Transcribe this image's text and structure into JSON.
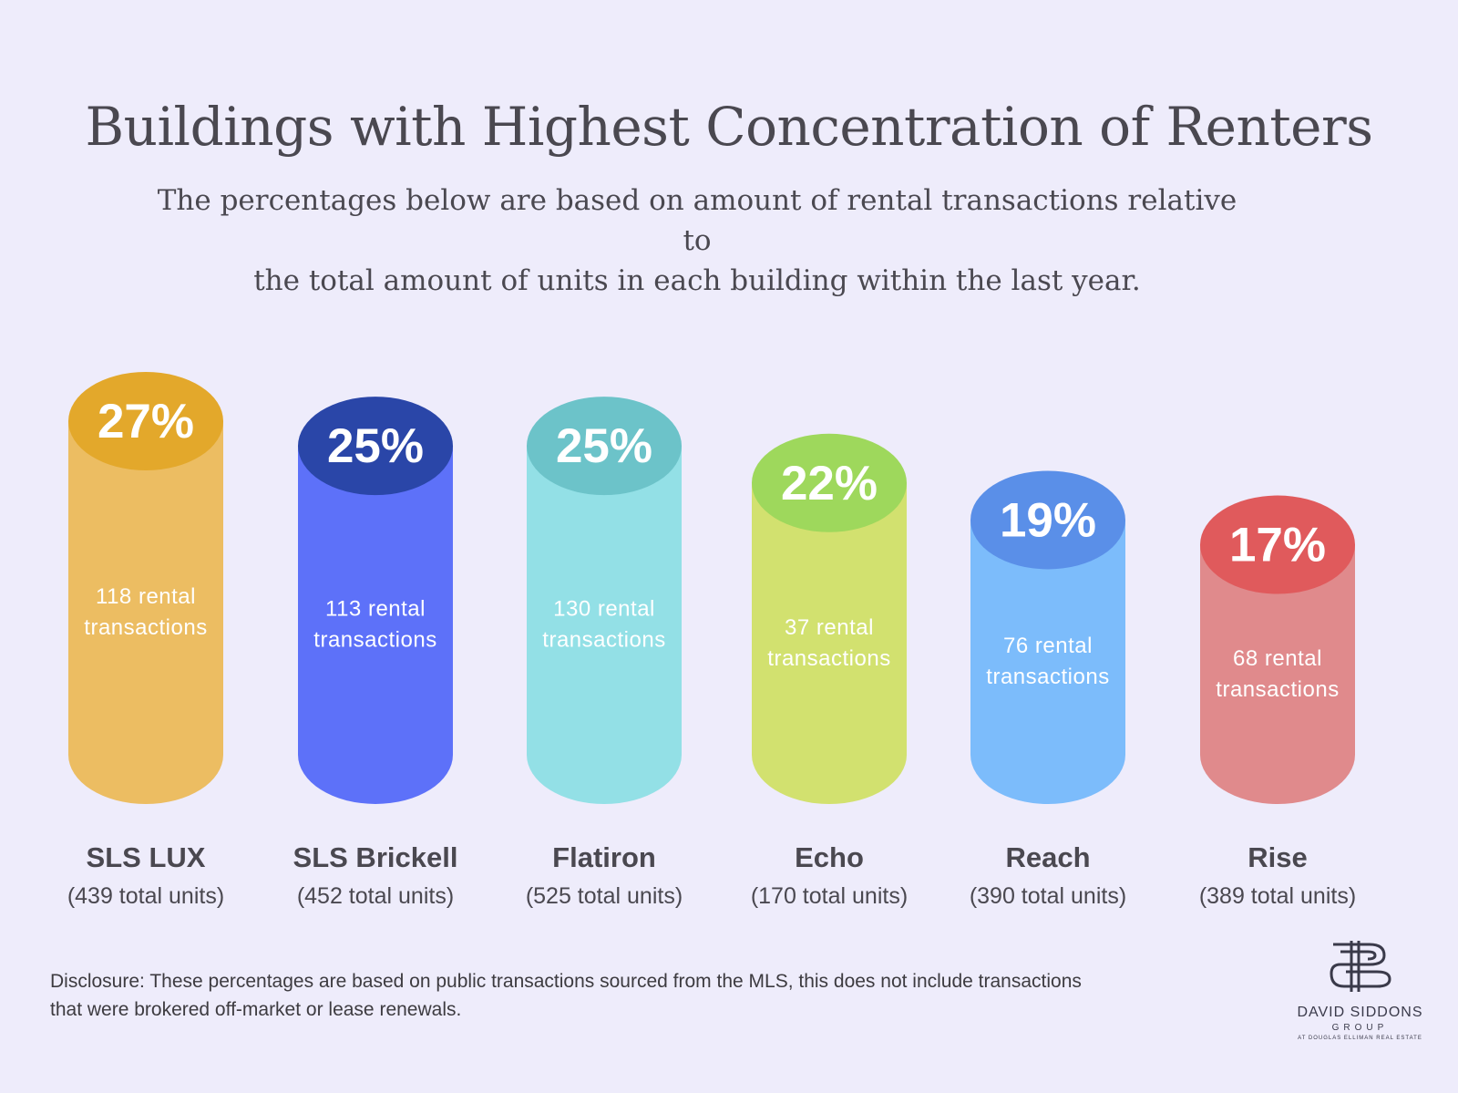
{
  "header": {
    "title": "Buildings with Highest Concentration of Renters",
    "subtitle_line1": "The percentages below are based on amount of rental transactions relative to",
    "subtitle_line2": "the total amount of units in each building within the last year."
  },
  "chart_data": {
    "type": "bar",
    "title": "Buildings with Highest Concentration of Renters",
    "subtitle": "The percentages below are based on amount of rental transactions relative to the total amount of units in each building within the last year.",
    "categories": [
      "SLS LUX",
      "SLS Brickell",
      "Flatiron",
      "Echo",
      "Reach",
      "Rise"
    ],
    "units_labels": [
      "(439 total units)",
      "(452 total units)",
      "(525 total units)",
      "(170 total units)",
      "(390 total units)",
      "(389 total units)"
    ],
    "values": [
      27,
      25,
      25,
      22,
      19,
      17
    ],
    "value_labels": [
      "27%",
      "25%",
      "25%",
      "22%",
      "19%",
      "17%"
    ],
    "transaction_labels": [
      [
        "118 rental",
        "transactions"
      ],
      [
        "113 rental",
        "transactions"
      ],
      [
        "130 rental",
        "transactions"
      ],
      [
        "37 rental",
        "transactions"
      ],
      [
        "76 rental",
        "transactions"
      ],
      [
        "68 rental",
        "transactions"
      ]
    ],
    "colors": {
      "body": [
        "#ecbd62",
        "#5d71f9",
        "#93e0e6",
        "#d2e16f",
        "#7cbcfb",
        "#e08a8c"
      ],
      "top": [
        "#e3a82b",
        "#2a46a8",
        "#6cc3c9",
        "#9ed85c",
        "#5a8fe8",
        "#e05a5c"
      ]
    },
    "ylim": [
      0,
      27
    ],
    "grid": false
  },
  "footer": {
    "disclosure_line1": "Disclosure: These percentages are based on public transactions sourced from the MLS, this does not include transactions",
    "disclosure_line2": "that were brokered off-market or lease renewals.",
    "logo_name": "DAVID SIDDONS",
    "logo_group": "GROUP",
    "logo_sub": "AT DOUGLAS ELLIMAN REAL ESTATE"
  }
}
